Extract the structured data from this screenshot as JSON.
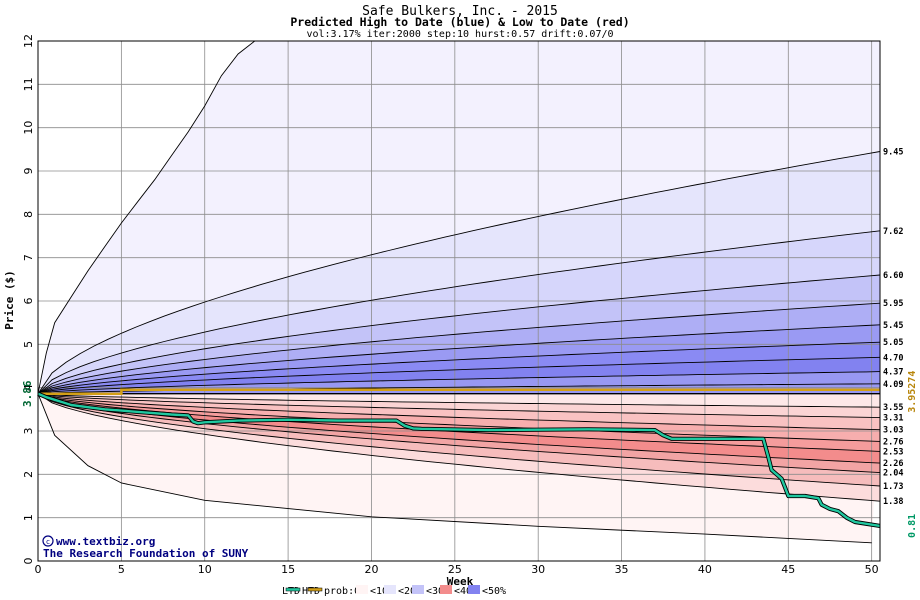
{
  "chart_data": {
    "type": "area",
    "title": "Safe Bulkers, Inc. - 2015",
    "subtitle": "Predicted High to Date (blue) &  Low to Date (red)",
    "params": "vol:3.17% iter:2000 step:10 hurst:0.57 drift:0.07/0",
    "xlabel": "Week",
    "ylabel": "Price ($)",
    "xlim": [
      0,
      50.5
    ],
    "ylim": [
      0,
      12
    ],
    "xticks": [
      0,
      5,
      10,
      15,
      20,
      25,
      30,
      35,
      40,
      45,
      50
    ],
    "yticks": [
      0,
      1,
      2,
      3,
      4,
      5,
      6,
      7,
      8,
      9,
      10,
      11,
      12
    ],
    "grid": true,
    "start_price": 3.86,
    "start_price_label": "3.86",
    "prob_line_value": 3.95274,
    "prob_line_label": "3.95274",
    "final_value": 0.81,
    "final_value_label": "0.81",
    "high_curves": [
      {
        "end": 9.45,
        "label": "9.45"
      },
      {
        "end": 7.62,
        "label": "7.62"
      },
      {
        "end": 6.6,
        "label": "6.60"
      },
      {
        "end": 5.95,
        "label": "5.95"
      },
      {
        "end": 5.45,
        "label": "5.45"
      },
      {
        "end": 5.05,
        "label": "5.05"
      },
      {
        "end": 4.7,
        "label": "4.70"
      },
      {
        "end": 4.37,
        "label": "4.37"
      },
      {
        "end": 4.09,
        "label": "4.09"
      }
    ],
    "low_curves": [
      {
        "end": 3.55,
        "label": "3.55"
      },
      {
        "end": 3.31,
        "label": "3.31"
      },
      {
        "end": 3.03,
        "label": "3.03"
      },
      {
        "end": 2.76,
        "label": "2.76"
      },
      {
        "end": 2.53,
        "label": "2.53"
      },
      {
        "end": 2.26,
        "label": "2.26"
      },
      {
        "end": 2.04,
        "label": "2.04"
      },
      {
        "end": 1.73,
        "label": "1.73"
      },
      {
        "end": 1.38,
        "label": "1.38"
      }
    ],
    "outer_high_curve": {
      "x": [
        0,
        0.5,
        1,
        2,
        3,
        4,
        5,
        6,
        7,
        8,
        9,
        10,
        11,
        12,
        13
      ],
      "y": [
        3.86,
        4.8,
        5.5,
        6.1,
        6.7,
        7.25,
        7.8,
        8.3,
        8.8,
        9.35,
        9.9,
        10.5,
        11.2,
        11.7,
        12.0
      ]
    },
    "outer_low_curve": {
      "x": [
        0,
        1,
        3,
        5,
        10,
        20,
        30,
        40,
        50
      ],
      "y": [
        3.86,
        2.9,
        2.2,
        1.8,
        1.4,
        1.02,
        0.8,
        0.62,
        0.42
      ]
    },
    "htd_ltd_path": {
      "x": [
        0,
        0.5,
        1,
        1.5,
        2,
        3,
        4,
        5,
        6,
        7,
        8,
        9,
        9.3,
        9.6,
        10,
        12,
        15,
        18,
        21.5,
        22,
        22.5,
        23,
        27,
        30,
        33,
        37,
        37.5,
        38,
        40,
        43.5,
        43.8,
        44,
        44.3,
        44.6,
        44.8,
        45,
        46,
        46.8,
        47,
        47.5,
        48,
        48.5,
        49,
        50.5
      ],
      "y": [
        3.86,
        3.78,
        3.72,
        3.66,
        3.6,
        3.55,
        3.5,
        3.47,
        3.44,
        3.41,
        3.38,
        3.36,
        3.22,
        3.18,
        3.2,
        3.24,
        3.26,
        3.24,
        3.24,
        3.12,
        3.06,
        3.05,
        3.02,
        3.03,
        3.04,
        3.02,
        2.9,
        2.82,
        2.82,
        2.82,
        2.4,
        2.1,
        2.0,
        1.9,
        1.7,
        1.5,
        1.5,
        1.45,
        1.3,
        1.2,
        1.15,
        1.0,
        0.9,
        0.81
      ]
    },
    "colors": {
      "high_fills": [
        "#f3f1fe",
        "#e5e5fc",
        "#d6d6fb",
        "#c3c3f8",
        "#aeaef5",
        "#9a9af3",
        "#8a8af3",
        "#8282f0",
        "#9898f2"
      ],
      "low_fills": [
        "#fde8e8",
        "#fbd4d4",
        "#f9c2c2",
        "#f7aeae",
        "#f59c9c",
        "#f38c8c",
        "#f2a4a4",
        "#f6bcbc",
        "#fcdcdc",
        "#fff4f4"
      ],
      "htd_line": "#20c8a0",
      "prob_line": "#d4a017",
      "high_label_text": "#000000",
      "start_label": "#006633",
      "prob_label": "#b8860b",
      "final_label": "#009966"
    },
    "legend": {
      "items": [
        "LTD",
        "HTD",
        "prob:0%",
        "<10%",
        "<20%",
        "<30%",
        "<40%",
        "<50%"
      ],
      "swatch_colors": [
        "#ffffff",
        "#20c8a0",
        "#d4a017",
        "#fff4f4",
        "#e5e5fc",
        "#c3c3f8",
        "#f38c8c",
        "#8282f0"
      ]
    },
    "credits": [
      "www.textbiz.org",
      "The Research Foundation of SUNY"
    ]
  }
}
